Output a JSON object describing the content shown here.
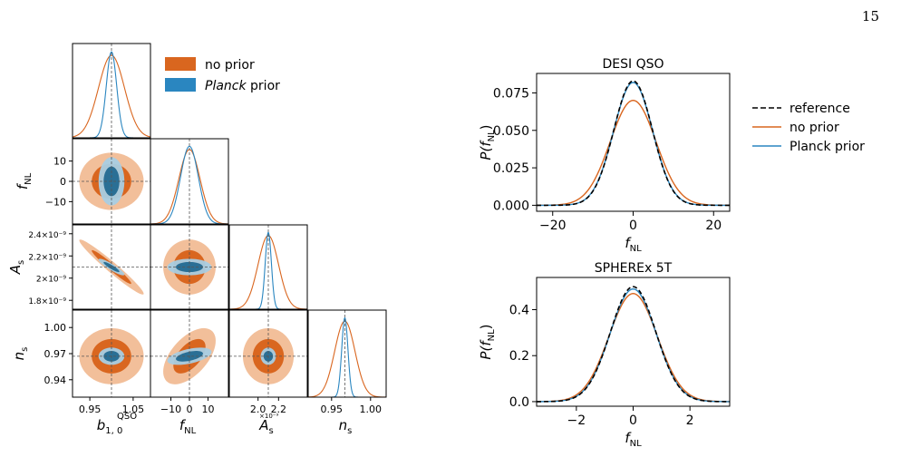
{
  "page_number": "15",
  "colors": {
    "no_prior": "#d9661f",
    "no_prior_light": "#f0b488",
    "planck": "#2a86c0",
    "planck_dark": "#2a6f95",
    "planck_light": "#a8cde3",
    "reference": "#000000"
  },
  "chart_data": [
    {
      "type": "corner",
      "title": "",
      "legend": {
        "placement": "top-right",
        "entries": [
          {
            "label": "no prior",
            "color": "#d9661f"
          },
          {
            "label_italic": "Planck",
            "label_rest": " prior",
            "color": "#2a86c0"
          }
        ]
      },
      "parameters": [
        {
          "key": "b",
          "label_main": "b",
          "label_sup": "QSO",
          "label_sub": "1, 0",
          "fiducial": 1.0,
          "range": [
            0.91,
            1.09
          ],
          "ticks": [
            0.95,
            1.05
          ],
          "tick_labels": [
            "0.95",
            "1.05"
          ],
          "sigma_no_prior": 0.03,
          "sigma_planck": 0.012
        },
        {
          "key": "fnl",
          "label_main": "f",
          "label_sub": "NL",
          "fiducial": 0,
          "range": [
            -21,
            21
          ],
          "ticks": [
            -10,
            0,
            10
          ],
          "tick_labels": [
            "−10",
            "0",
            "10"
          ],
          "sigma_no_prior": 5.7,
          "sigma_planck": 4.8
        },
        {
          "key": "As",
          "label_main": "A",
          "label_sub": "s",
          "fiducial": 2.1,
          "range": [
            1.72,
            2.48
          ],
          "ticks": [
            1.8,
            2.0,
            2.2,
            2.4
          ],
          "tick_labels": [
            "1.8×10⁻⁹",
            "2×10⁻⁹",
            "2.2×10⁻⁹",
            "2.4×10⁻⁹"
          ],
          "x_ticks": [
            2.0,
            2.2
          ],
          "x_tick_labels": [
            "2.0",
            "2.2"
          ],
          "x_offset_label": "×10⁻⁹",
          "sigma_no_prior": 0.1,
          "sigma_planck": 0.03
        },
        {
          "key": "ns",
          "label_main": "n",
          "label_sub": "s",
          "fiducial": 0.967,
          "range": [
            0.92,
            1.02
          ],
          "ticks": [
            0.94,
            0.97,
            1.0
          ],
          "tick_labels": [
            "0.94",
            "0.97",
            "1.00"
          ],
          "x_ticks": [
            0.95,
            1.0
          ],
          "x_tick_labels": [
            "0.95",
            "1.00"
          ],
          "sigma_no_prior": 0.013,
          "sigma_planck": 0.004
        }
      ],
      "correlations_no_prior": {
        "b-As": -0.97,
        "fnl-ns": 0.55
      },
      "correlations_planck": {
        "b-As": -0.9,
        "fnl-ns": 0.5
      }
    },
    {
      "type": "line",
      "title": "DESI QSO",
      "xlabel_main": "f",
      "xlabel_sub": "NL",
      "ylabel_pre": "P(",
      "ylabel_main": "f",
      "ylabel_sub": "NL",
      "ylabel_post": ")",
      "xlim": [
        -24,
        24
      ],
      "ylim": [
        -0.004,
        0.088
      ],
      "xticks": [
        -20,
        0,
        20
      ],
      "xtick_labels": [
        "−20",
        "0",
        "20"
      ],
      "yticks": [
        0,
        0.025,
        0.05,
        0.075
      ],
      "ytick_labels": [
        "0.000",
        "0.025",
        "0.050",
        "0.075"
      ],
      "series": [
        {
          "name": "reference",
          "style": "dashed",
          "peak": 0.083,
          "sigma": 4.8
        },
        {
          "name": "no prior",
          "style": "solid",
          "peak": 0.07,
          "sigma": 5.7
        },
        {
          "name": "Planck prior",
          "style": "solid",
          "peak": 0.082,
          "sigma": 4.85
        }
      ]
    },
    {
      "type": "line",
      "title": "SPHEREx 5T",
      "xlabel_main": "f",
      "xlabel_sub": "NL",
      "ylabel_pre": "P(",
      "ylabel_main": "f",
      "ylabel_sub": "NL",
      "ylabel_post": ")",
      "xlim": [
        -3.4,
        3.4
      ],
      "ylim": [
        -0.02,
        0.54
      ],
      "xticks": [
        -2,
        0,
        2
      ],
      "xtick_labels": [
        "−2",
        "0",
        "2"
      ],
      "yticks": [
        0,
        0.2,
        0.4
      ],
      "ytick_labels": [
        "0.0",
        "0.2",
        "0.4"
      ],
      "series": [
        {
          "name": "reference",
          "style": "dashed",
          "peak": 0.5,
          "sigma": 0.8
        },
        {
          "name": "no prior",
          "style": "solid",
          "peak": 0.47,
          "sigma": 0.85
        },
        {
          "name": "Planck prior",
          "style": "solid",
          "peak": 0.49,
          "sigma": 0.81
        }
      ]
    }
  ],
  "right_legend": {
    "placement": "right",
    "entries": [
      {
        "label": "reference",
        "style": "dashed",
        "color": "#000000"
      },
      {
        "label": "no prior",
        "style": "solid",
        "color": "#d9661f"
      },
      {
        "label": "Planck prior",
        "style": "solid",
        "color": "#2a86c0"
      }
    ]
  }
}
